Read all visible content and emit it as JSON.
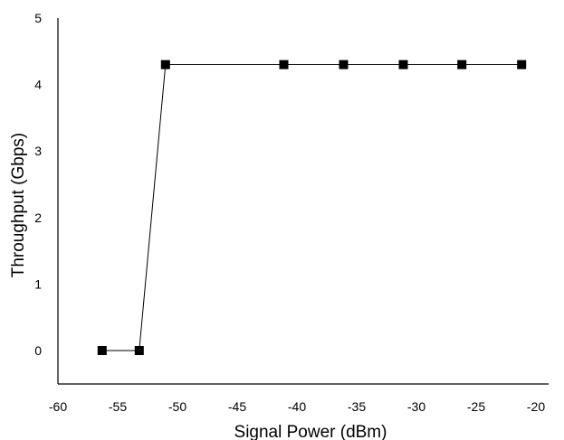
{
  "chart_data": {
    "type": "line",
    "title": "",
    "xlabel": "Signal Power (dBm)",
    "ylabel": "Throughput (Gbps)",
    "xlim": [
      -60,
      -20
    ],
    "ylim": [
      -0.5,
      5
    ],
    "xticks": [
      -60,
      -55,
      -50,
      -45,
      -40,
      -35,
      -30,
      -25,
      -20
    ],
    "yticks": [
      0,
      1,
      2,
      3,
      4,
      5
    ],
    "grid": false,
    "legend": "none",
    "series": [
      {
        "color": "#000000",
        "marker": "square",
        "x": [
          -56.3,
          -53.2,
          -51.0,
          -41.1,
          -36.1,
          -31.1,
          -26.2,
          -21.2
        ],
        "y": [
          0,
          0,
          4.3,
          4.3,
          4.3,
          4.3,
          4.3,
          4.3
        ]
      }
    ]
  }
}
